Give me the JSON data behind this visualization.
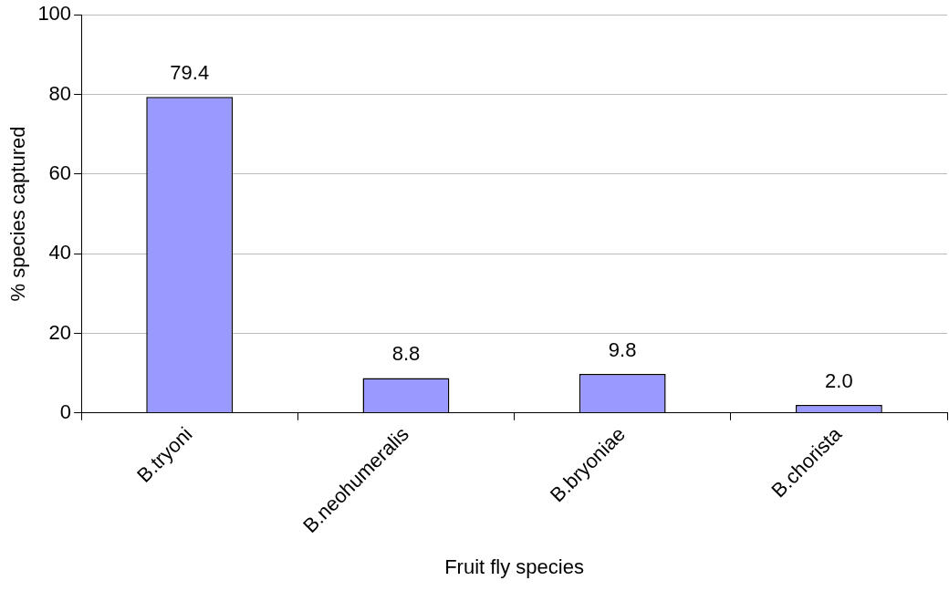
{
  "chart_data": {
    "type": "bar",
    "xlabel": "Fruit fly species",
    "ylabel": "% species captured",
    "categories": [
      "B.tryoni",
      "B.neohumeralis",
      "B.bryoniae",
      "B.chorista"
    ],
    "values": [
      79.4,
      8.8,
      9.8,
      2.0
    ],
    "value_labels": [
      "79.4",
      "8.8",
      "9.8",
      "2.0"
    ],
    "color": "#9999ff",
    "ylim": [
      0,
      100
    ],
    "yticks": [
      0,
      20,
      40,
      60,
      80,
      100
    ],
    "grid": "y",
    "legend": false
  }
}
